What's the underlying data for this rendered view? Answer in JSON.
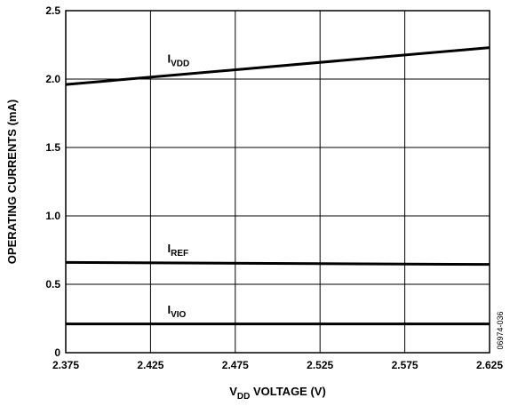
{
  "chart_data": {
    "type": "line",
    "title": "",
    "xlabel": {
      "main": "V",
      "sub": "DD",
      "rest": " VOLTAGE (V)"
    },
    "ylabel": "OPERATING CURRENTS (mA)",
    "xlim": [
      2.375,
      2.625
    ],
    "ylim": [
      0,
      2.5
    ],
    "xticks": [
      2.375,
      2.425,
      2.475,
      2.525,
      2.575,
      2.625
    ],
    "xtick_labels": [
      "2.375",
      "2.425",
      "2.475",
      "2.525",
      "2.575",
      "2.625"
    ],
    "yticks": [
      0,
      0.5,
      1.0,
      1.5,
      2.0,
      2.5
    ],
    "ytick_labels": [
      "0",
      "0.5",
      "1.0",
      "1.5",
      "2.0",
      "2.5"
    ],
    "grid": true,
    "series": [
      {
        "name": "I_VDD",
        "label_main": "I",
        "label_sub": "VDD",
        "label_at": [
          2.435,
          2.12
        ],
        "color": "#000000",
        "x": [
          2.375,
          2.625
        ],
        "y": [
          1.96,
          2.23
        ]
      },
      {
        "name": "I_REF",
        "label_main": "I",
        "label_sub": "REF",
        "label_at": [
          2.435,
          0.735
        ],
        "color": "#000000",
        "x": [
          2.375,
          2.625
        ],
        "y": [
          0.66,
          0.645
        ]
      },
      {
        "name": "I_VIO",
        "label_main": "I",
        "label_sub": "VIO",
        "label_at": [
          2.435,
          0.285
        ],
        "color": "#000000",
        "x": [
          2.375,
          2.625
        ],
        "y": [
          0.21,
          0.21
        ]
      }
    ],
    "figure_id": "06974-036"
  }
}
